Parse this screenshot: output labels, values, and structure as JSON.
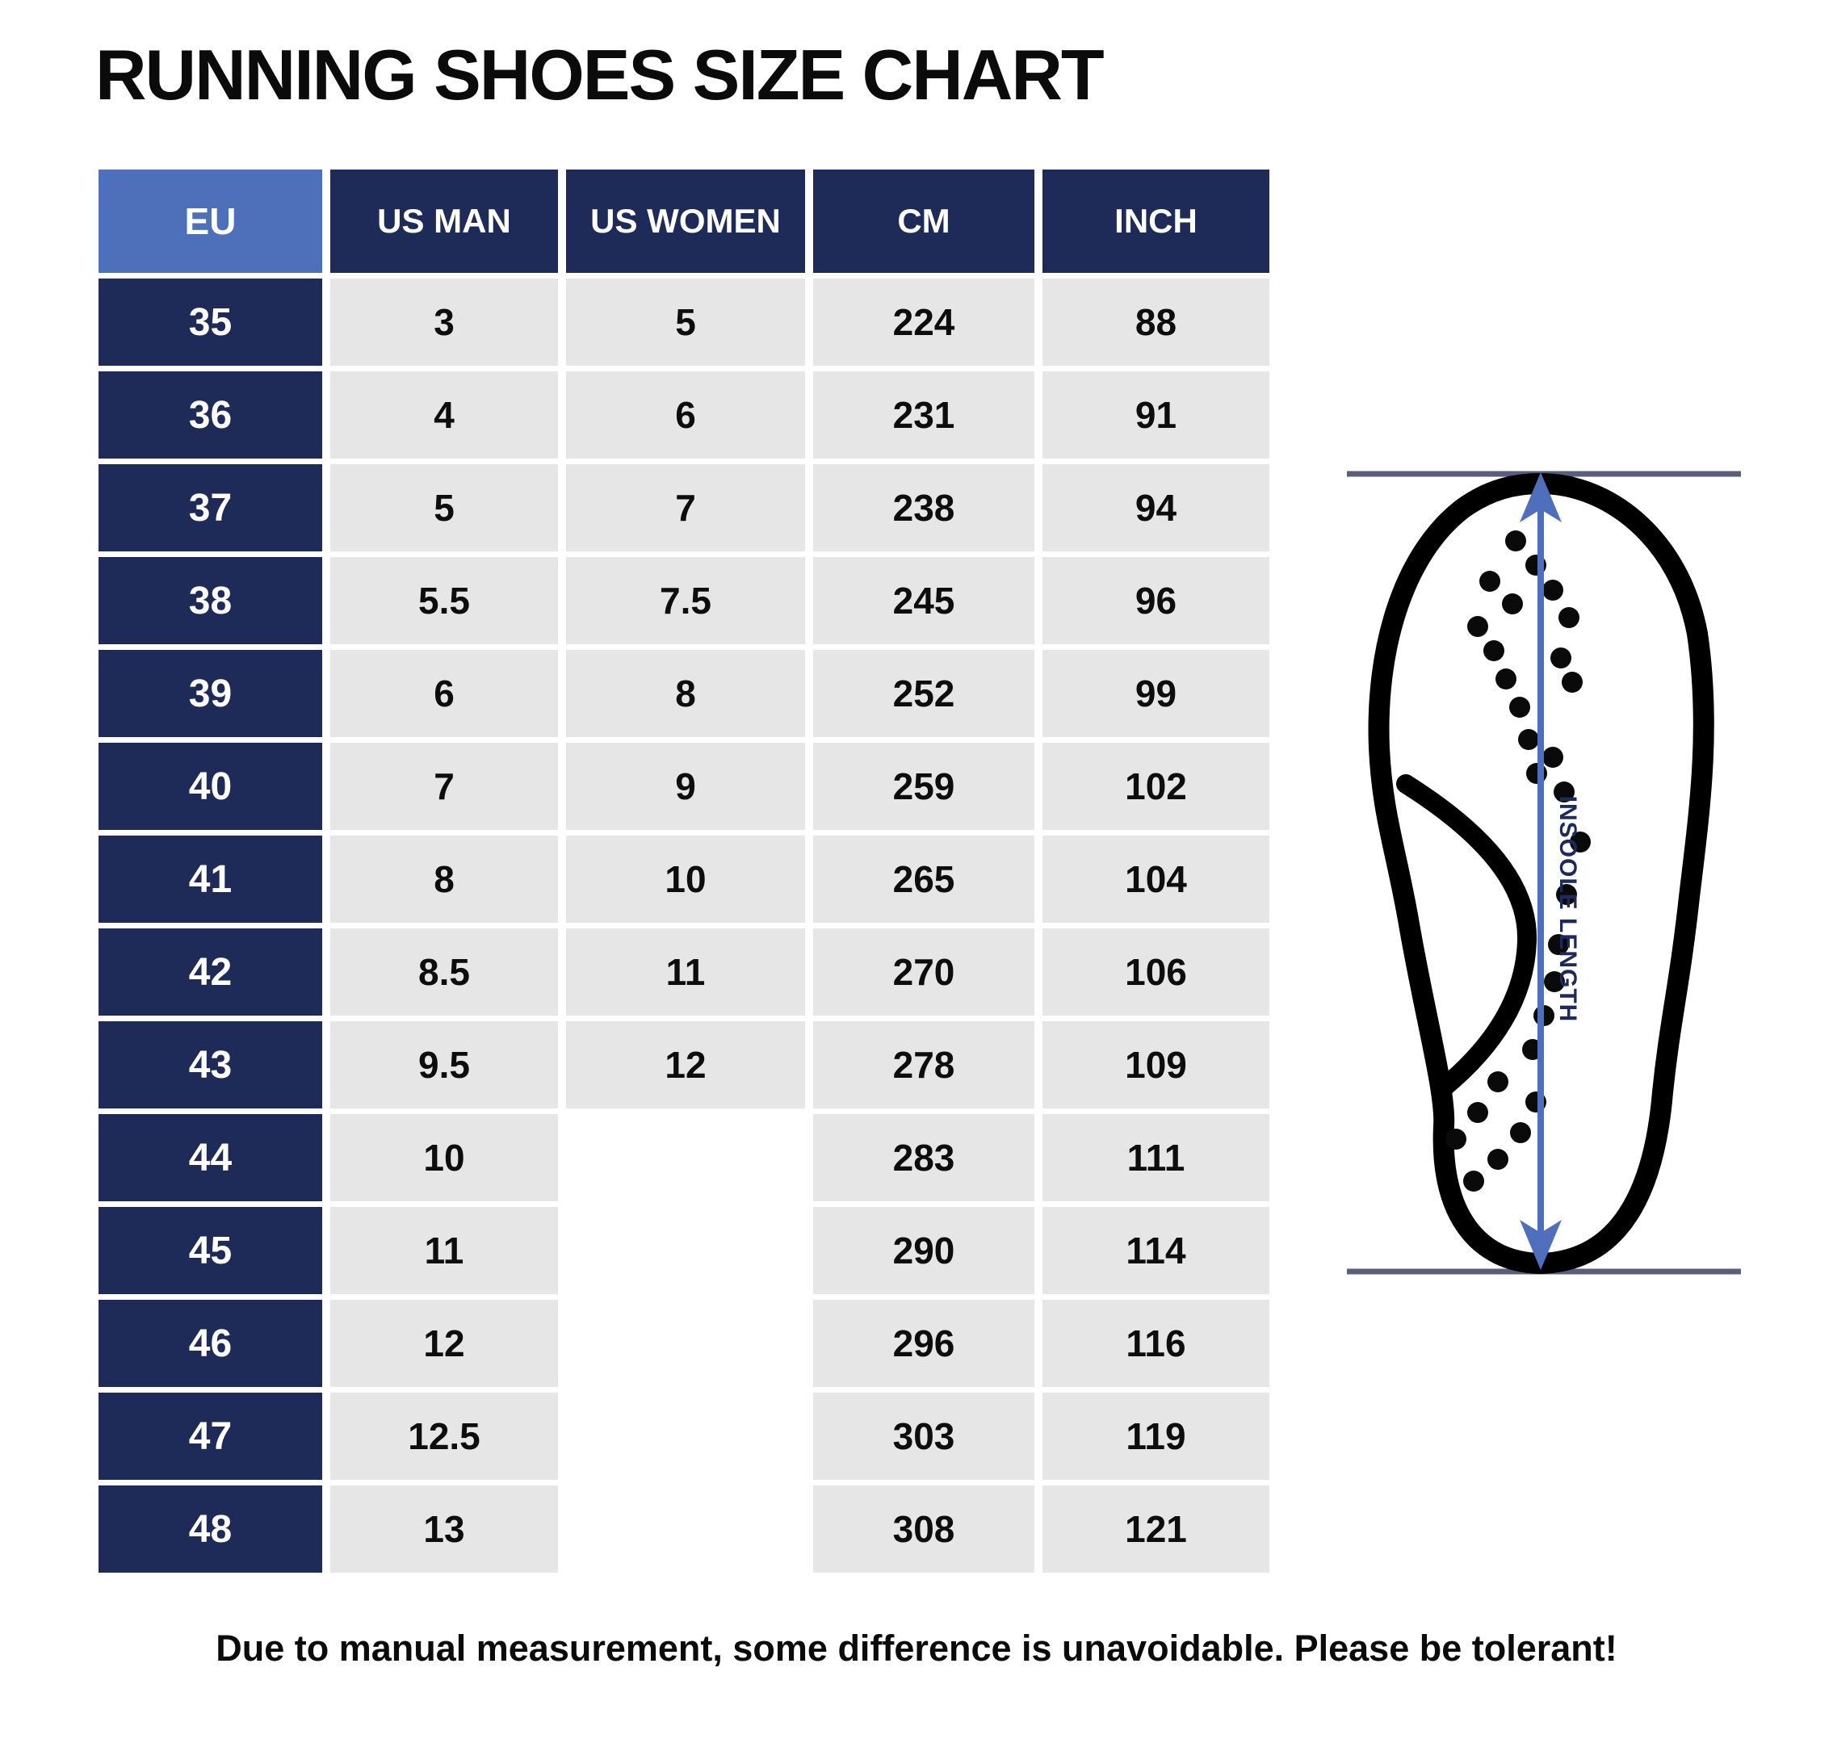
{
  "title": "RUNNING SHOES SIZE CHART",
  "table": {
    "headers": [
      "EU",
      "US MAN",
      "US WOMEN",
      "CM",
      "INCH"
    ],
    "rows": [
      [
        "35",
        "3",
        "5",
        "224",
        "88"
      ],
      [
        "36",
        "4",
        "6",
        "231",
        "91"
      ],
      [
        "37",
        "5",
        "7",
        "238",
        "94"
      ],
      [
        "38",
        "5.5",
        "7.5",
        "245",
        "96"
      ],
      [
        "39",
        "6",
        "8",
        "252",
        "99"
      ],
      [
        "40",
        "7",
        "9",
        "259",
        "102"
      ],
      [
        "41",
        "8",
        "10",
        "265",
        "104"
      ],
      [
        "42",
        "8.5",
        "11",
        "270",
        "106"
      ],
      [
        "43",
        "9.5",
        "12",
        "278",
        "109"
      ],
      [
        "44",
        "10",
        "",
        "283",
        "111"
      ],
      [
        "45",
        "11",
        "",
        "290",
        "114"
      ],
      [
        "46",
        "12",
        "",
        "296",
        "116"
      ],
      [
        "47",
        "12.5",
        "",
        "303",
        "119"
      ],
      [
        "48",
        "13",
        "",
        "308",
        "121"
      ]
    ]
  },
  "chart_data": {
    "type": "table",
    "title": "RUNNING SHOES SIZE CHART",
    "columns": [
      "EU",
      "US MAN",
      "US WOMEN",
      "CM",
      "INCH"
    ],
    "rows": [
      [
        "35",
        "3",
        "5",
        "224",
        "88"
      ],
      [
        "36",
        "4",
        "6",
        "231",
        "91"
      ],
      [
        "37",
        "5",
        "7",
        "238",
        "94"
      ],
      [
        "38",
        "5.5",
        "7.5",
        "245",
        "96"
      ],
      [
        "39",
        "6",
        "8",
        "252",
        "99"
      ],
      [
        "40",
        "7",
        "9",
        "259",
        "102"
      ],
      [
        "41",
        "8",
        "10",
        "265",
        "104"
      ],
      [
        "42",
        "8.5",
        "11",
        "270",
        "106"
      ],
      [
        "43",
        "9.5",
        "12",
        "278",
        "109"
      ],
      [
        "44",
        "10",
        "",
        "283",
        "111"
      ],
      [
        "45",
        "11",
        "",
        "290",
        "114"
      ],
      [
        "46",
        "12",
        "",
        "296",
        "116"
      ],
      [
        "47",
        "12.5",
        "",
        "303",
        "119"
      ],
      [
        "48",
        "13",
        "",
        "308",
        "121"
      ]
    ]
  },
  "illustration": {
    "label": "INSOOLE LENGTH"
  },
  "footer": "Due to manual measurement, some difference is unavoidable. Please be tolerant!",
  "colors": {
    "navy": "#1e2a57",
    "light_blue": "#4e6fba",
    "cell_gray": "#e6e6e6",
    "arrow_blue": "#4f6fbc",
    "line_slate": "#5a5e7e",
    "text_black": "#0b0b0b"
  }
}
